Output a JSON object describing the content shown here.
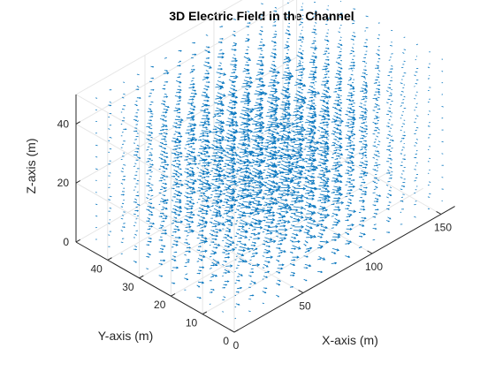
{
  "chart_data": {
    "type": "quiver3d",
    "title": "3D Electric Field in the Channel",
    "xlabel": "X-axis (m)",
    "ylabel": "Y-axis (m)",
    "zlabel": "Z-axis (m)",
    "xlim": [
      0,
      160
    ],
    "ylim": [
      0,
      50
    ],
    "zlim": [
      0,
      50
    ],
    "xticks": [
      "0",
      "50",
      "100",
      "150"
    ],
    "yticks": [
      "0",
      "10",
      "20",
      "30",
      "40"
    ],
    "zticks": [
      "0",
      "20",
      "40"
    ],
    "arrow_color": "#0072BD",
    "grid": true,
    "box": "partial"
  }
}
